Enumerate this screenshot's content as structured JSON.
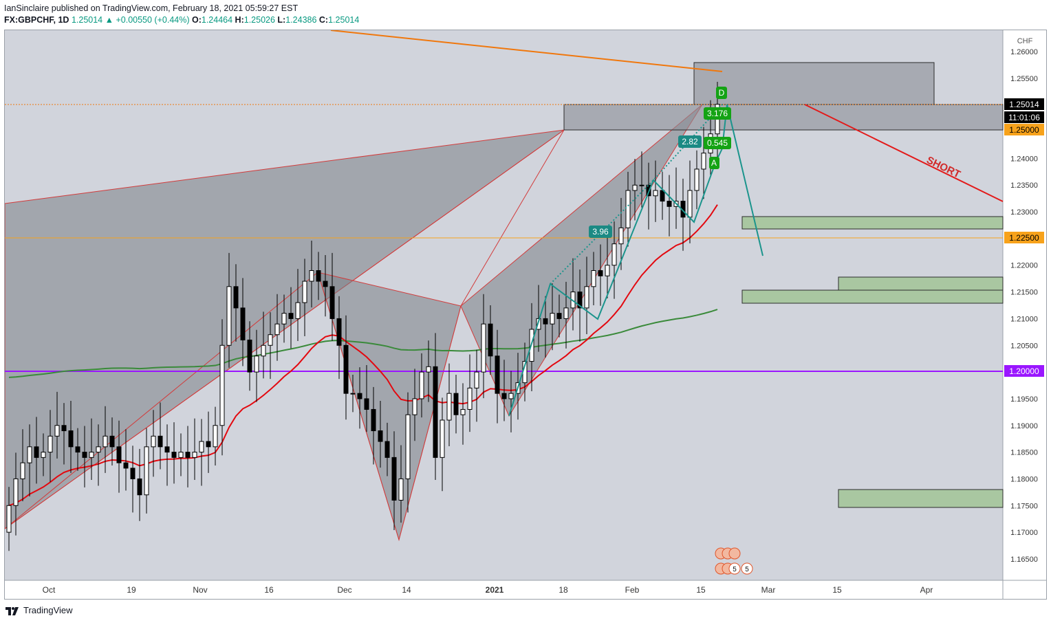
{
  "header": {
    "publisher_line": "IanSinclaire published on TradingView.com, February 18, 2021 05:59:27 EST",
    "symbol": "FX:GBPCHF, 1D",
    "last": "1.25014",
    "change": "+0.00550 (+0.44%)",
    "open_label": "O:",
    "open": "1.24464",
    "high_label": "H:",
    "high": "1.25026",
    "low_label": "L:",
    "low": "1.24386",
    "close_label": "C:",
    "close": "1.25014"
  },
  "footer": {
    "brand": "TradingView"
  },
  "axis": {
    "currency": "CHF",
    "y_ticks": [
      "1.26000",
      "1.25500",
      "1.25000",
      "1.24000",
      "1.23500",
      "1.23000",
      "1.22000",
      "1.21500",
      "1.21000",
      "1.20500",
      "1.20000",
      "1.19500",
      "1.19000",
      "1.18500",
      "1.18000",
      "1.17500",
      "1.17000",
      "1.16500"
    ],
    "x_ticks": [
      "Oct",
      "19",
      "Nov",
      "16",
      "Dec",
      "14",
      "2021",
      "18",
      "Feb",
      "15",
      "Mar",
      "15",
      "Apr"
    ]
  },
  "price_labels": {
    "last_price": "1.25014",
    "countdown": "11:01:06",
    "level_1": "1.25000",
    "level_2": "1.22500",
    "level_3": "1.20000"
  },
  "annotations": {
    "short_label": "SHORT",
    "ratio_396": "3.96",
    "ratio_282": "2.82",
    "ratio_3176": "3.176",
    "ratio_0545": "0.545",
    "point_d": "D",
    "point_a": "A",
    "event_count_1": "5",
    "event_count_2": "5"
  },
  "colors": {
    "background": "#ffffff",
    "plot_bg": "#d1d4dc",
    "up_candle": "#ffffff",
    "down_candle": "#000000",
    "ema_fast": "#e3080f",
    "ema_slow": "#3a8a3a",
    "trendline": "#f0770c",
    "short_arrow": "#e31a1a",
    "level_purple": "#9a16ff",
    "level_orange": "#f7a21b",
    "harmonic": "#1b948c",
    "pattern_fill": "#7c7f87",
    "demand_zone": "#a9c7a1",
    "label_green": "#14a314",
    "label_teal": "#1b8a84"
  },
  "chart_data": {
    "type": "candlestick",
    "instrument": "FX:GBPCHF",
    "timeframe": "1D",
    "x": [
      "2020-09-24",
      "2020-09-25",
      "2020-09-28",
      "2020-09-29",
      "2020-09-30",
      "2020-10-01",
      "2020-10-02",
      "2020-10-05",
      "2020-10-06",
      "2020-10-07",
      "2020-10-08",
      "2020-10-09",
      "2020-10-12",
      "2020-10-13",
      "2020-10-14",
      "2020-10-15",
      "2020-10-16",
      "2020-10-19",
      "2020-10-20",
      "2020-10-21",
      "2020-10-22",
      "2020-10-23",
      "2020-10-26",
      "2020-10-27",
      "2020-10-28",
      "2020-10-29",
      "2020-10-30",
      "2020-11-02",
      "2020-11-03",
      "2020-11-04",
      "2020-11-05",
      "2020-11-06",
      "2020-11-09",
      "2020-11-10",
      "2020-11-11",
      "2020-11-12",
      "2020-11-13",
      "2020-11-16",
      "2020-11-17",
      "2020-11-18",
      "2020-11-19",
      "2020-11-20",
      "2020-11-23",
      "2020-11-24",
      "2020-11-25",
      "2020-11-26",
      "2020-11-27",
      "2020-11-30",
      "2020-12-01",
      "2020-12-02",
      "2020-12-03",
      "2020-12-04",
      "2020-12-07",
      "2020-12-08",
      "2020-12-09",
      "2020-12-10",
      "2020-12-11",
      "2020-12-14",
      "2020-12-15",
      "2020-12-16",
      "2020-12-17",
      "2020-12-18",
      "2020-12-21",
      "2020-12-22",
      "2020-12-23",
      "2020-12-24",
      "2020-12-28",
      "2020-12-29",
      "2020-12-30",
      "2020-12-31",
      "2021-01-04",
      "2021-01-05",
      "2021-01-06",
      "2021-01-07",
      "2021-01-08",
      "2021-01-11",
      "2021-01-12",
      "2021-01-13",
      "2021-01-14",
      "2021-01-15",
      "2021-01-18",
      "2021-01-19",
      "2021-01-20",
      "2021-01-21",
      "2021-01-22",
      "2021-01-25",
      "2021-01-26",
      "2021-01-27",
      "2021-01-28",
      "2021-01-29",
      "2021-02-01",
      "2021-02-02",
      "2021-02-03",
      "2021-02-04",
      "2021-02-05",
      "2021-02-08",
      "2021-02-09",
      "2021-02-10",
      "2021-02-11",
      "2021-02-12",
      "2021-02-15",
      "2021-02-16",
      "2021-02-17",
      "2021-02-18"
    ],
    "open": [
      1.17,
      1.175,
      1.18,
      1.183,
      1.186,
      1.184,
      1.185,
      1.188,
      1.19,
      1.189,
      1.186,
      1.185,
      1.184,
      1.185,
      1.186,
      1.188,
      1.186,
      1.183,
      1.182,
      1.18,
      1.177,
      1.186,
      1.188,
      1.186,
      1.185,
      1.184,
      1.185,
      1.184,
      1.185,
      1.187,
      1.186,
      1.19,
      1.205,
      1.216,
      1.212,
      1.206,
      1.2,
      1.203,
      1.205,
      1.207,
      1.209,
      1.211,
      1.21,
      1.213,
      1.217,
      1.219,
      1.217,
      1.216,
      1.21,
      1.205,
      1.196,
      1.196,
      1.195,
      1.193,
      1.189,
      1.187,
      1.184,
      1.176,
      1.18,
      1.192,
      1.195,
      1.2,
      1.201,
      1.184,
      1.191,
      1.196,
      1.192,
      1.193,
      1.197,
      1.2,
      1.209,
      1.203,
      1.196,
      1.195,
      1.196,
      1.198,
      1.202,
      1.208,
      1.21,
      1.209,
      1.211,
      1.21,
      1.212,
      1.215,
      1.212,
      1.216,
      1.219,
      1.218,
      1.22,
      1.224,
      1.227,
      1.234,
      1.235,
      1.235,
      1.233,
      1.234,
      1.232,
      1.231,
      1.232,
      1.229,
      1.234,
      1.238,
      1.241,
      1.2446
    ],
    "close": [
      1.175,
      1.18,
      1.183,
      1.186,
      1.184,
      1.185,
      1.188,
      1.19,
      1.189,
      1.186,
      1.185,
      1.184,
      1.185,
      1.186,
      1.188,
      1.186,
      1.183,
      1.182,
      1.18,
      1.177,
      1.186,
      1.188,
      1.186,
      1.185,
      1.184,
      1.185,
      1.184,
      1.185,
      1.187,
      1.186,
      1.19,
      1.205,
      1.216,
      1.212,
      1.206,
      1.2,
      1.203,
      1.205,
      1.207,
      1.209,
      1.211,
      1.21,
      1.213,
      1.217,
      1.219,
      1.217,
      1.216,
      1.21,
      1.205,
      1.196,
      1.196,
      1.195,
      1.193,
      1.189,
      1.187,
      1.184,
      1.176,
      1.18,
      1.192,
      1.195,
      1.2,
      1.201,
      1.184,
      1.191,
      1.196,
      1.192,
      1.193,
      1.197,
      1.2,
      1.209,
      1.203,
      1.196,
      1.195,
      1.196,
      1.198,
      1.202,
      1.208,
      1.21,
      1.209,
      1.211,
      1.21,
      1.212,
      1.215,
      1.212,
      1.216,
      1.219,
      1.218,
      1.22,
      1.224,
      1.227,
      1.234,
      1.235,
      1.235,
      1.233,
      1.234,
      1.232,
      1.231,
      1.232,
      1.229,
      1.234,
      1.238,
      1.241,
      1.2446,
      1.25014
    ],
    "ema_fast_label": "",
    "levels": [
      1.26,
      1.25,
      1.225,
      1.2
    ],
    "demand_zones": [
      [
        1.2275,
        1.2295
      ],
      [
        1.2148,
        1.2175
      ],
      [
        1.213,
        1.215
      ],
      [
        1.1745,
        1.1778
      ]
    ],
    "supply_zones": [
      [
        1.25,
        1.2582
      ],
      [
        1.2475,
        1.2505
      ]
    ],
    "ylim": [
      1.161,
      1.264
    ],
    "ylabel": "CHF"
  }
}
